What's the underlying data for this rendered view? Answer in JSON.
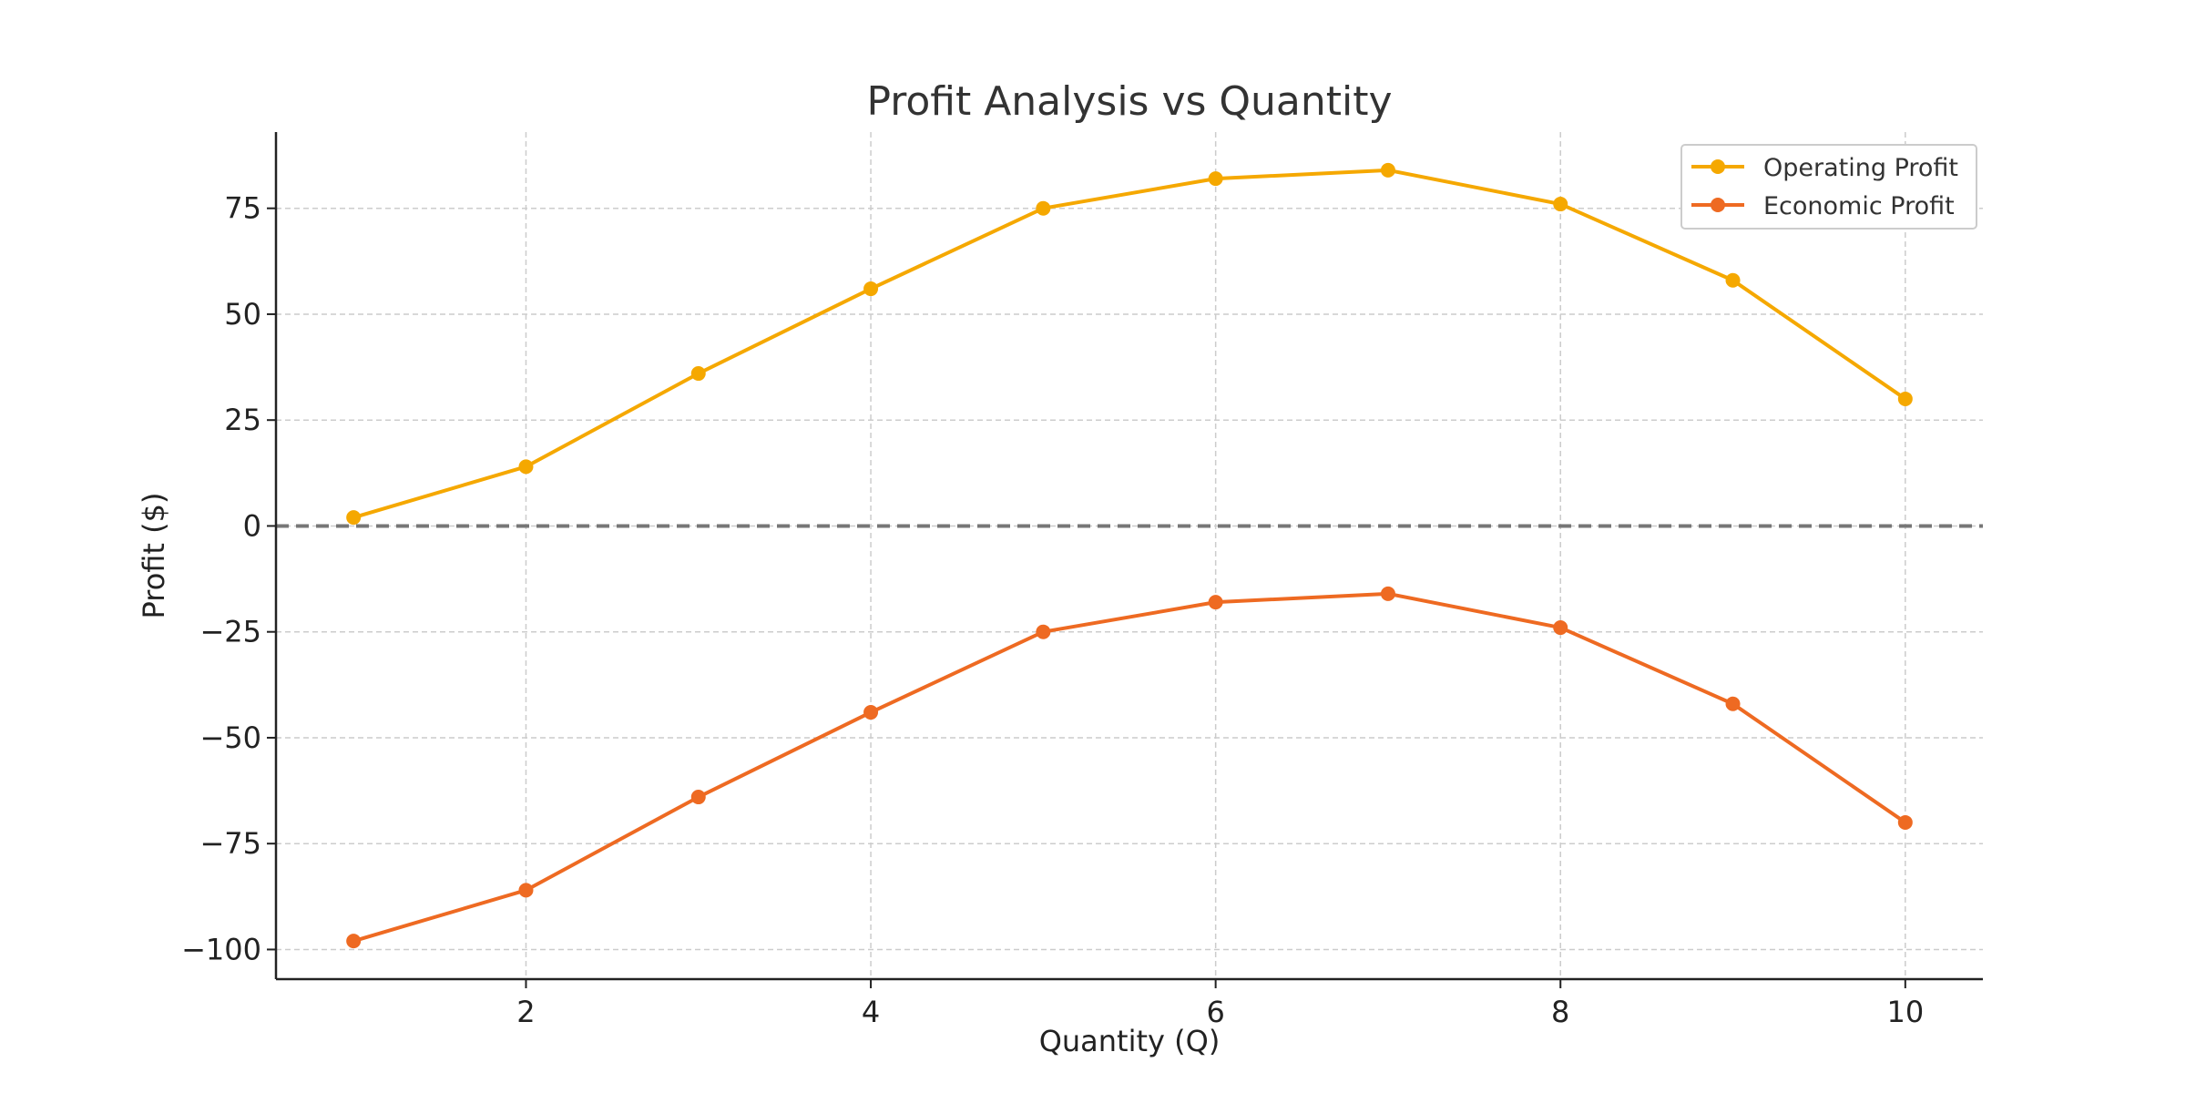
{
  "chart_data": {
    "type": "line",
    "title": "Profit Analysis vs Quantity",
    "xlabel": "Quantity (Q)",
    "ylabel": "Profit ($)",
    "x": [
      1,
      2,
      3,
      4,
      5,
      6,
      7,
      8,
      9,
      10
    ],
    "xlim": [
      0.55,
      10.45
    ],
    "ylim": [
      -107,
      93
    ],
    "xticks": [
      2,
      4,
      6,
      8,
      10
    ],
    "yticks": [
      -100,
      -75,
      -50,
      -25,
      0,
      25,
      50,
      75
    ],
    "ytick_labels": [
      "−100",
      "−75",
      "−50",
      "−25",
      "0",
      "25",
      "50",
      "75"
    ],
    "grid": true,
    "reference_line": {
      "y": 0,
      "style": "dashed",
      "color": "#777777"
    },
    "legend_position": "top-right",
    "series": [
      {
        "name": "Operating Profit",
        "color": "#F5A800",
        "values": [
          2,
          14,
          36,
          56,
          75,
          82,
          84,
          76,
          58,
          30
        ]
      },
      {
        "name": "Economic Profit",
        "color": "#EE6A22",
        "values": [
          -98,
          -86,
          -64,
          -44,
          -25,
          -18,
          -16,
          -24,
          -42,
          -70
        ]
      }
    ]
  }
}
